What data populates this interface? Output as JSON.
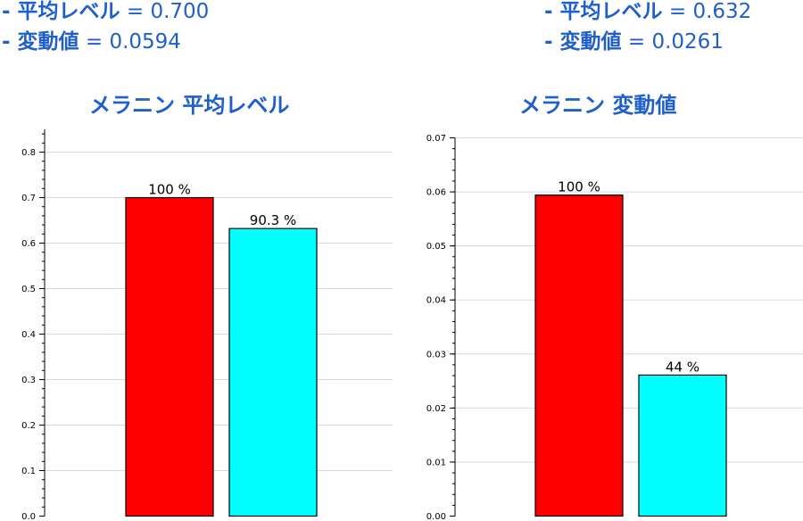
{
  "stats": {
    "left": {
      "mean_label": "- 平均レベル",
      "mean_value": " = 0.700",
      "var_label": "- 変動値",
      "var_value": " = 0.0594"
    },
    "right": {
      "mean_label": "- 平均レベル",
      "mean_value": " = 0.632",
      "var_label": "- 変動値",
      "var_value": " = 0.0261"
    }
  },
  "colors": {
    "text_accent": "#1f5fcc",
    "bar_red": "#ff0000",
    "bar_cyan": "#00ffff",
    "grid": "#d9d9d9"
  },
  "chart_data": [
    {
      "type": "bar",
      "title": "メラニン 平均レベル",
      "xlabel": "",
      "ylabel": "",
      "ylim": [
        0,
        0.85
      ],
      "yticks": [
        0.0,
        0.1,
        0.2,
        0.3,
        0.4,
        0.5,
        0.6,
        0.7,
        0.8
      ],
      "ytick_labels": [
        "0.0",
        "0.1",
        "0.2",
        "0.3",
        "0.4",
        "0.5",
        "0.6",
        "0.7",
        "0.8"
      ],
      "grid": true,
      "bars": [
        {
          "value": 0.7,
          "label": "100 %",
          "color": "#ff0000"
        },
        {
          "value": 0.632,
          "label": "90.3 %",
          "color": "#00ffff"
        }
      ]
    },
    {
      "type": "bar",
      "title": "メラニン 変動値",
      "xlabel": "",
      "ylabel": "",
      "ylim": [
        0,
        0.07
      ],
      "yticks": [
        0.0,
        0.01,
        0.02,
        0.03,
        0.04,
        0.05,
        0.06,
        0.07
      ],
      "ytick_labels": [
        "0.00",
        "0.01",
        "0.02",
        "0.03",
        "0.04",
        "0.05",
        "0.06",
        "0.07"
      ],
      "grid": true,
      "bars": [
        {
          "value": 0.0594,
          "label": "100 %",
          "color": "#ff0000"
        },
        {
          "value": 0.0261,
          "label": "44 %",
          "color": "#00ffff"
        }
      ]
    }
  ]
}
